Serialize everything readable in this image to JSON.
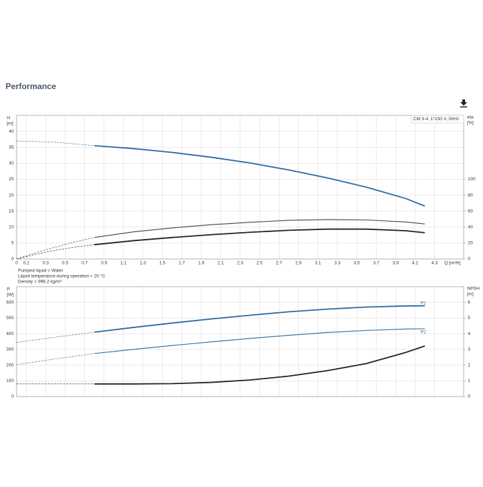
{
  "page_title": "Performance",
  "chart_data": [
    {
      "type": "line",
      "pump_label": "CM 3-4, 1*230 V, 50Hz",
      "y_label": [
        "H",
        "[m]"
      ],
      "y2_label": [
        "eta",
        "[%]"
      ],
      "x_label": "Q [m³/h]",
      "xlim": [
        0,
        4.6
      ],
      "xticks": [
        0,
        0.1,
        0.3,
        0.5,
        0.7,
        0.9,
        1.1,
        1.3,
        1.5,
        1.7,
        1.9,
        2.1,
        2.3,
        2.5,
        2.7,
        2.9,
        3.1,
        3.3,
        3.5,
        3.7,
        3.9,
        4.1,
        4.3
      ],
      "ylim": [
        0,
        45
      ],
      "yticks": [
        0,
        5,
        10,
        15,
        20,
        25,
        30,
        35,
        40
      ],
      "y2lim": [
        0,
        180
      ],
      "y2ticks": [
        0,
        20,
        40,
        60,
        80,
        100
      ],
      "grid": true,
      "show_x_tick_labels": true,
      "series": [
        {
          "color": "#2b6aa3",
          "width": 0.6,
          "dashed": true,
          "x": [
            0,
            0.4,
            0.8
          ],
          "values": [
            37,
            36.6,
            35.5
          ]
        },
        {
          "color": "#2b6aa3",
          "width": 1.8,
          "dashed": false,
          "x": [
            0.8,
            1.2,
            1.6,
            2.0,
            2.4,
            2.8,
            3.2,
            3.6,
            4.0,
            4.2
          ],
          "values": [
            35.5,
            34.6,
            33.4,
            31.9,
            30.1,
            27.9,
            25.4,
            22.5,
            19.0,
            16.6
          ]
        },
        {
          "color": "#444444",
          "width": 0.6,
          "dashed": true,
          "axis": "y2",
          "x": [
            0,
            0.2,
            0.4,
            0.6,
            0.8
          ],
          "values": [
            0,
            8,
            15,
            21.5,
            27
          ]
        },
        {
          "color": "#444444",
          "width": 1.1,
          "dashed": false,
          "axis": "y2",
          "x": [
            0.8,
            1.2,
            1.6,
            2.0,
            2.4,
            2.8,
            3.2,
            3.6,
            4.0,
            4.2
          ],
          "values": [
            27,
            34,
            39,
            43,
            46,
            48.5,
            49.5,
            49,
            46.5,
            44
          ]
        },
        {
          "color": "#222222",
          "width": 0.6,
          "dashed": true,
          "axis": "y2",
          "x": [
            0,
            0.2,
            0.4,
            0.6,
            0.8
          ],
          "values": [
            0,
            6,
            11,
            15,
            18
          ]
        },
        {
          "color": "#222222",
          "width": 1.8,
          "dashed": false,
          "axis": "y2",
          "x": [
            0.8,
            1.2,
            1.6,
            2.0,
            2.4,
            2.8,
            3.2,
            3.6,
            4.0,
            4.2
          ],
          "values": [
            18,
            23,
            27,
            30.5,
            33.5,
            36,
            37.5,
            37.5,
            35.5,
            33
          ]
        }
      ],
      "notes": [
        "Pumped liquid = Water",
        "Liquid temperature during operation = 20 °C",
        "Density = 998.2 kg/m³"
      ]
    },
    {
      "type": "line",
      "y_label": [
        "P",
        "[W]"
      ],
      "y2_label": [
        "NPSH",
        "[m]"
      ],
      "xlim": [
        0,
        4.6
      ],
      "xticks": [
        0,
        0.1,
        0.3,
        0.5,
        0.7,
        0.9,
        1.1,
        1.3,
        1.5,
        1.7,
        1.9,
        2.1,
        2.3,
        2.5,
        2.7,
        2.9,
        3.1,
        3.3,
        3.5,
        3.7,
        3.9,
        4.1,
        4.3
      ],
      "ylim": [
        0,
        700
      ],
      "yticks": [
        0,
        100,
        200,
        300,
        400,
        500,
        600
      ],
      "y2lim": [
        0,
        7
      ],
      "y2ticks": [
        0,
        1,
        2,
        3,
        4,
        5,
        6
      ],
      "grid": true,
      "show_x_tick_labels": false,
      "series": [
        {
          "color": "#2b6aa3",
          "width": 0.6,
          "dashed": true,
          "x": [
            0,
            0.4,
            0.8
          ],
          "values": [
            345,
            378,
            410
          ]
        },
        {
          "name": "P1",
          "color": "#2b6aa3",
          "width": 1.8,
          "dashed": false,
          "x": [
            0.8,
            1.2,
            1.6,
            2.0,
            2.4,
            2.8,
            3.2,
            3.6,
            4.0,
            4.2
          ],
          "values": [
            410,
            440,
            468,
            494,
            518,
            540,
            557,
            570,
            577,
            578
          ]
        },
        {
          "color": "#2b6aa3",
          "width": 0.6,
          "dashed": true,
          "x": [
            0,
            0.4,
            0.8
          ],
          "values": [
            203,
            240,
            274
          ]
        },
        {
          "name": "P2",
          "color": "#2b6aa3",
          "width": 1.1,
          "dashed": false,
          "x": [
            0.8,
            1.2,
            1.6,
            2.0,
            2.4,
            2.8,
            3.2,
            3.6,
            4.0,
            4.2
          ],
          "values": [
            274,
            300,
            325,
            348,
            370,
            390,
            408,
            421,
            430,
            432
          ]
        },
        {
          "color": "#222222",
          "width": 0.6,
          "dashed": true,
          "axis": "y2",
          "x": [
            0,
            0.4,
            0.8
          ],
          "values": [
            0.8,
            0.8,
            0.8
          ]
        },
        {
          "color": "#222222",
          "width": 1.8,
          "dashed": false,
          "axis": "y2",
          "x": [
            0.8,
            1.2,
            1.6,
            2.0,
            2.4,
            2.8,
            3.2,
            3.6,
            4.0,
            4.2
          ],
          "values": [
            0.8,
            0.8,
            0.82,
            0.9,
            1.05,
            1.3,
            1.65,
            2.1,
            2.8,
            3.22
          ]
        }
      ]
    }
  ]
}
